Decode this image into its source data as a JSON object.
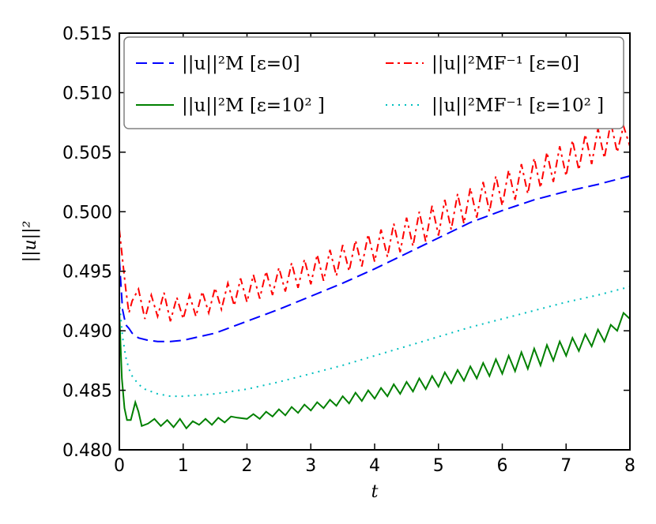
{
  "chart_data": {
    "type": "line",
    "xlabel": "t",
    "ylabel": "||u||²",
    "xlim": [
      0,
      8
    ],
    "ylim": [
      0.48,
      0.515
    ],
    "x_ticks": [
      "0",
      "1",
      "2",
      "3",
      "4",
      "5",
      "6",
      "7",
      "8"
    ],
    "y_ticks": [
      "0.480",
      "0.485",
      "0.490",
      "0.495",
      "0.500",
      "0.505",
      "0.510",
      "0.515"
    ],
    "grid": false,
    "legend_position": "top",
    "series": [
      {
        "name": "||u||²M [ε=0]",
        "color": "#0000ff",
        "style": "dashed",
        "points": [
          [
            0,
            0.496
          ],
          [
            0.05,
            0.4918
          ],
          [
            0.1,
            0.4905
          ],
          [
            0.15,
            0.4902
          ],
          [
            0.2,
            0.4898
          ],
          [
            0.3,
            0.4894
          ],
          [
            0.45,
            0.4892
          ],
          [
            0.6,
            0.4891
          ],
          [
            0.8,
            0.4891
          ],
          [
            1.0,
            0.4892
          ],
          [
            1.5,
            0.4898
          ],
          [
            2.0,
            0.4908
          ],
          [
            2.5,
            0.4918
          ],
          [
            3.0,
            0.4929
          ],
          [
            3.5,
            0.494
          ],
          [
            4.0,
            0.4952
          ],
          [
            4.5,
            0.4965
          ],
          [
            5.0,
            0.4978
          ],
          [
            5.5,
            0.4991
          ],
          [
            6.0,
            0.5001
          ],
          [
            6.5,
            0.501
          ],
          [
            7.0,
            0.5017
          ],
          [
            7.5,
            0.5023
          ],
          [
            8.0,
            0.503
          ]
        ]
      },
      {
        "name": "||u||²M [ε=10² ]",
        "color": "#008000",
        "style": "solid",
        "points": [
          [
            0,
            0.4915
          ],
          [
            0.04,
            0.486
          ],
          [
            0.08,
            0.4835
          ],
          [
            0.12,
            0.4825
          ],
          [
            0.18,
            0.4825
          ],
          [
            0.25,
            0.484
          ],
          [
            0.3,
            0.4832
          ],
          [
            0.35,
            0.482
          ],
          [
            0.45,
            0.4822
          ],
          [
            0.55,
            0.4826
          ],
          [
            0.65,
            0.482
          ],
          [
            0.75,
            0.4825
          ],
          [
            0.85,
            0.4819
          ],
          [
            0.95,
            0.4826
          ],
          [
            1.05,
            0.4818
          ],
          [
            1.15,
            0.4824
          ],
          [
            1.25,
            0.4821
          ],
          [
            1.35,
            0.4826
          ],
          [
            1.45,
            0.4821
          ],
          [
            1.55,
            0.4827
          ],
          [
            1.65,
            0.4823
          ],
          [
            1.75,
            0.4828
          ],
          [
            1.85,
            0.4827
          ],
          [
            2.0,
            0.4826
          ],
          [
            2.1,
            0.483
          ],
          [
            2.2,
            0.4826
          ],
          [
            2.3,
            0.4832
          ],
          [
            2.4,
            0.4828
          ],
          [
            2.5,
            0.4834
          ],
          [
            2.6,
            0.4829
          ],
          [
            2.7,
            0.4836
          ],
          [
            2.8,
            0.4831
          ],
          [
            2.9,
            0.4838
          ],
          [
            3.0,
            0.4833
          ],
          [
            3.1,
            0.484
          ],
          [
            3.2,
            0.4835
          ],
          [
            3.3,
            0.4842
          ],
          [
            3.4,
            0.4837
          ],
          [
            3.5,
            0.4845
          ],
          [
            3.6,
            0.4839
          ],
          [
            3.7,
            0.4848
          ],
          [
            3.8,
            0.4841
          ],
          [
            3.9,
            0.485
          ],
          [
            4.0,
            0.4843
          ],
          [
            4.1,
            0.4852
          ],
          [
            4.2,
            0.4845
          ],
          [
            4.3,
            0.4855
          ],
          [
            4.4,
            0.4847
          ],
          [
            4.5,
            0.4857
          ],
          [
            4.6,
            0.4849
          ],
          [
            4.7,
            0.486
          ],
          [
            4.8,
            0.4851
          ],
          [
            4.9,
            0.4862
          ],
          [
            5.0,
            0.4853
          ],
          [
            5.1,
            0.4865
          ],
          [
            5.2,
            0.4856
          ],
          [
            5.3,
            0.4867
          ],
          [
            5.4,
            0.4858
          ],
          [
            5.5,
            0.487
          ],
          [
            5.6,
            0.486
          ],
          [
            5.7,
            0.4873
          ],
          [
            5.8,
            0.4862
          ],
          [
            5.9,
            0.4876
          ],
          [
            6.0,
            0.4864
          ],
          [
            6.1,
            0.4879
          ],
          [
            6.2,
            0.4866
          ],
          [
            6.3,
            0.4882
          ],
          [
            6.4,
            0.4868
          ],
          [
            6.5,
            0.4885
          ],
          [
            6.6,
            0.4871
          ],
          [
            6.7,
            0.4888
          ],
          [
            6.8,
            0.4875
          ],
          [
            6.9,
            0.4891
          ],
          [
            7.0,
            0.4879
          ],
          [
            7.1,
            0.4894
          ],
          [
            7.2,
            0.4883
          ],
          [
            7.3,
            0.4897
          ],
          [
            7.4,
            0.4887
          ],
          [
            7.5,
            0.4901
          ],
          [
            7.6,
            0.4891
          ],
          [
            7.7,
            0.4905
          ],
          [
            7.8,
            0.49
          ],
          [
            7.9,
            0.4915
          ],
          [
            8.0,
            0.491
          ]
        ]
      },
      {
        "name": "||u||²MF⁻¹ [ε=0]",
        "color": "#ff0000",
        "style": "dashdot",
        "points": [
          [
            0,
            0.4985
          ],
          [
            0.05,
            0.496
          ],
          [
            0.1,
            0.4935
          ],
          [
            0.15,
            0.4915
          ],
          [
            0.2,
            0.4925
          ],
          [
            0.3,
            0.4935
          ],
          [
            0.4,
            0.491
          ],
          [
            0.5,
            0.493
          ],
          [
            0.6,
            0.4912
          ],
          [
            0.7,
            0.4932
          ],
          [
            0.8,
            0.4908
          ],
          [
            0.9,
            0.4928
          ],
          [
            1.0,
            0.491
          ],
          [
            1.1,
            0.493
          ],
          [
            1.2,
            0.4912
          ],
          [
            1.3,
            0.4933
          ],
          [
            1.4,
            0.4915
          ],
          [
            1.5,
            0.4936
          ],
          [
            1.6,
            0.4918
          ],
          [
            1.7,
            0.494
          ],
          [
            1.8,
            0.4921
          ],
          [
            1.9,
            0.4944
          ],
          [
            2.0,
            0.4924
          ],
          [
            2.1,
            0.4947
          ],
          [
            2.2,
            0.4927
          ],
          [
            2.3,
            0.495
          ],
          [
            2.4,
            0.493
          ],
          [
            2.5,
            0.4953
          ],
          [
            2.6,
            0.4933
          ],
          [
            2.7,
            0.4957
          ],
          [
            2.8,
            0.4936
          ],
          [
            2.9,
            0.496
          ],
          [
            3.0,
            0.4939
          ],
          [
            3.1,
            0.4964
          ],
          [
            3.2,
            0.4942
          ],
          [
            3.3,
            0.4968
          ],
          [
            3.4,
            0.4946
          ],
          [
            3.5,
            0.4972
          ],
          [
            3.6,
            0.495
          ],
          [
            3.7,
            0.4976
          ],
          [
            3.8,
            0.4954
          ],
          [
            3.9,
            0.4981
          ],
          [
            4.0,
            0.4958
          ],
          [
            4.1,
            0.4985
          ],
          [
            4.2,
            0.4962
          ],
          [
            4.3,
            0.499
          ],
          [
            4.4,
            0.4966
          ],
          [
            4.5,
            0.4995
          ],
          [
            4.6,
            0.4971
          ],
          [
            4.7,
            0.5
          ],
          [
            4.8,
            0.4975
          ],
          [
            4.9,
            0.5005
          ],
          [
            5.0,
            0.498
          ],
          [
            5.1,
            0.501
          ],
          [
            5.2,
            0.4985
          ],
          [
            5.3,
            0.5015
          ],
          [
            5.4,
            0.499
          ],
          [
            5.5,
            0.502
          ],
          [
            5.6,
            0.4995
          ],
          [
            5.7,
            0.5025
          ],
          [
            5.8,
            0.5
          ],
          [
            5.9,
            0.503
          ],
          [
            6.0,
            0.5005
          ],
          [
            6.1,
            0.5035
          ],
          [
            6.2,
            0.501
          ],
          [
            6.3,
            0.504
          ],
          [
            6.4,
            0.5015
          ],
          [
            6.5,
            0.5045
          ],
          [
            6.6,
            0.502
          ],
          [
            6.7,
            0.505
          ],
          [
            6.8,
            0.5025
          ],
          [
            6.9,
            0.5055
          ],
          [
            7.0,
            0.503
          ],
          [
            7.1,
            0.506
          ],
          [
            7.2,
            0.5035
          ],
          [
            7.3,
            0.5065
          ],
          [
            7.4,
            0.504
          ],
          [
            7.5,
            0.507
          ],
          [
            7.6,
            0.5045
          ],
          [
            7.7,
            0.5075
          ],
          [
            7.8,
            0.505
          ],
          [
            7.9,
            0.5072
          ],
          [
            8.0,
            0.5055
          ]
        ]
      },
      {
        "name": "||u||²MF⁻¹ [ε=10² ]",
        "color": "#00bfbf",
        "style": "dotted",
        "points": [
          [
            0,
            0.4925
          ],
          [
            0.05,
            0.4895
          ],
          [
            0.1,
            0.4878
          ],
          [
            0.15,
            0.4868
          ],
          [
            0.2,
            0.4862
          ],
          [
            0.3,
            0.4855
          ],
          [
            0.4,
            0.4851
          ],
          [
            0.6,
            0.4847
          ],
          [
            0.8,
            0.4845
          ],
          [
            1.0,
            0.4845
          ],
          [
            1.5,
            0.4847
          ],
          [
            2.0,
            0.4851
          ],
          [
            2.5,
            0.4857
          ],
          [
            3.0,
            0.4864
          ],
          [
            3.5,
            0.4871
          ],
          [
            4.0,
            0.4879
          ],
          [
            4.5,
            0.4887
          ],
          [
            5.0,
            0.4895
          ],
          [
            5.5,
            0.4903
          ],
          [
            6.0,
            0.491
          ],
          [
            6.5,
            0.4917
          ],
          [
            7.0,
            0.4924
          ],
          [
            7.5,
            0.493
          ],
          [
            8.0,
            0.4937
          ]
        ]
      }
    ]
  }
}
